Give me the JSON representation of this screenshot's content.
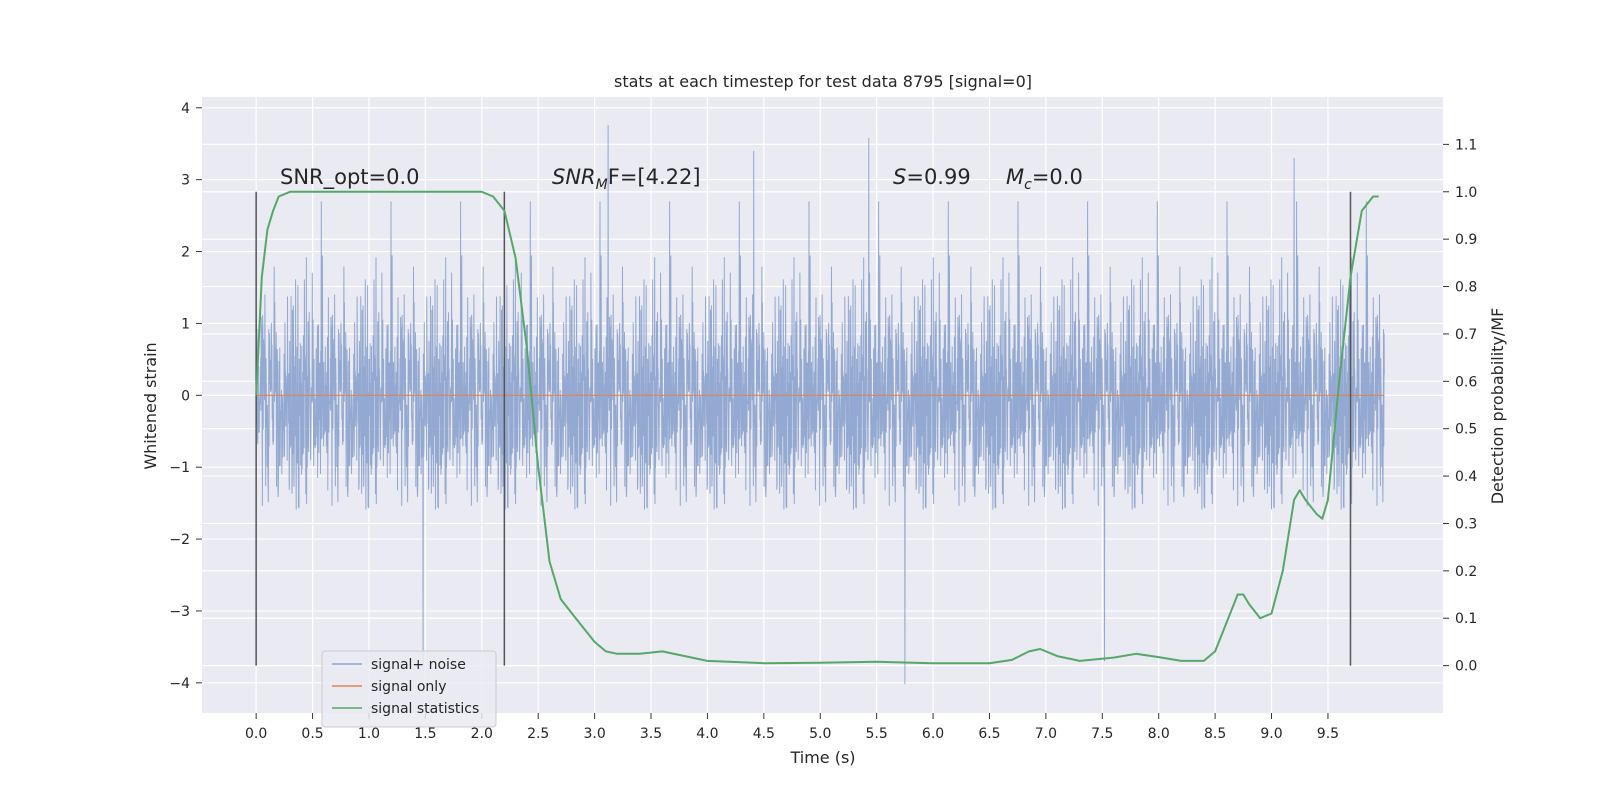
{
  "chart_data": {
    "type": "line",
    "title": "stats at each timestep for test data 8795 [signal=0]",
    "xlabel": "Time (s)",
    "ylabel": "Whitened strain",
    "y2label": "Detection probability/MF",
    "xlim": [
      -0.48,
      10.52
    ],
    "ylim": [
      -4.42,
      4.15
    ],
    "y2lim": [
      -0.1,
      1.2
    ],
    "xticks": [
      "0.0",
      "0.5",
      "1.0",
      "1.5",
      "2.0",
      "2.5",
      "3.0",
      "3.5",
      "4.0",
      "4.5",
      "5.0",
      "5.5",
      "6.0",
      "6.5",
      "7.0",
      "7.5",
      "8.0",
      "8.5",
      "9.0",
      "9.5"
    ],
    "yticks": [
      "4",
      "3",
      "2",
      "1",
      "0",
      "−1",
      "−2",
      "−3",
      "−4"
    ],
    "y2ticks": [
      "1.1",
      "1.0",
      "0.9",
      "0.8",
      "0.7",
      "0.6",
      "0.5",
      "0.4",
      "0.3",
      "0.2",
      "0.1",
      "0.0"
    ],
    "grid": true,
    "legend_position": "lower-left",
    "annotations": {
      "snr_opt": "SNR_opt=0.0",
      "snr_mf_main": "SNR",
      "snr_mf_sub": "M",
      "snr_mf_rest": "F=[4.22]",
      "s_main": "S",
      "s_rest": "=0.99",
      "mc_main": "M",
      "mc_sub": "c",
      "mc_rest": "=0.0"
    },
    "vertical_markers_x": [
      0.0,
      2.2,
      9.7
    ],
    "colors": {
      "noise": "#8fa5cf",
      "signal": "#dd8452",
      "stats": "#55a868",
      "background": "#eaeaf2",
      "grid": "#ffffff",
      "marker": "#555555"
    },
    "series": [
      {
        "name": "signal+ noise",
        "style": "dense noisy trace, approx. Gaussian, std ~0.9",
        "x_range": [
          0.0,
          10.0
        ],
        "envelope_typical": [
          -2.4,
          2.4
        ],
        "extremes": [
          {
            "x": 1.48,
            "y": -3.75
          },
          {
            "x": 3.12,
            "y": 3.76
          },
          {
            "x": 5.43,
            "y": 3.58
          },
          {
            "x": 5.75,
            "y": -4.02
          },
          {
            "x": 4.41,
            "y": 3.4
          },
          {
            "x": 9.2,
            "y": 3.3
          },
          {
            "x": 7.52,
            "y": -3.7
          }
        ]
      },
      {
        "name": "signal only",
        "x": [
          0.0,
          10.0
        ],
        "y": [
          0.0,
          0.0
        ]
      },
      {
        "name": "signal statistics",
        "axis": "right",
        "x": [
          0.0,
          0.05,
          0.1,
          0.15,
          0.2,
          0.3,
          0.5,
          1.0,
          1.5,
          2.0,
          2.1,
          2.2,
          2.3,
          2.4,
          2.5,
          2.6,
          2.7,
          2.8,
          2.9,
          3.0,
          3.1,
          3.2,
          3.4,
          3.6,
          3.8,
          4.0,
          4.5,
          5.0,
          5.5,
          6.0,
          6.5,
          6.7,
          6.85,
          6.95,
          7.1,
          7.3,
          7.6,
          7.8,
          8.0,
          8.2,
          8.4,
          8.5,
          8.6,
          8.7,
          8.75,
          8.8,
          8.9,
          9.0,
          9.1,
          9.2,
          9.25,
          9.3,
          9.4,
          9.45,
          9.5,
          9.6,
          9.7,
          9.8,
          9.9,
          9.95
        ],
        "y": [
          0.57,
          0.82,
          0.92,
          0.96,
          0.99,
          1.0,
          1.0,
          1.0,
          1.0,
          1.0,
          0.99,
          0.96,
          0.86,
          0.67,
          0.42,
          0.22,
          0.14,
          0.11,
          0.08,
          0.05,
          0.03,
          0.025,
          0.025,
          0.03,
          0.02,
          0.01,
          0.005,
          0.006,
          0.008,
          0.005,
          0.005,
          0.012,
          0.03,
          0.035,
          0.02,
          0.01,
          0.017,
          0.025,
          0.018,
          0.01,
          0.01,
          0.03,
          0.09,
          0.15,
          0.15,
          0.13,
          0.1,
          0.11,
          0.2,
          0.35,
          0.37,
          0.35,
          0.32,
          0.31,
          0.35,
          0.6,
          0.82,
          0.96,
          0.99,
          0.99
        ]
      }
    ]
  }
}
